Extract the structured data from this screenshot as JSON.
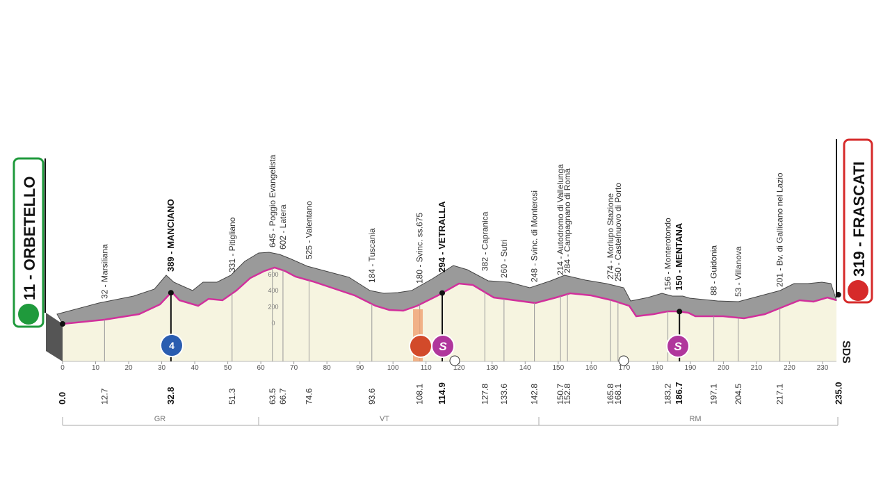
{
  "start": {
    "label": "11 - ORBETELLO",
    "km": "0.0"
  },
  "finish": {
    "label": "319 - FRASCATI",
    "km": "235.0"
  },
  "waypoints": [
    {
      "label": "32 - Marsiliana",
      "km": "12.7"
    },
    {
      "label": "389 - MANCIANO",
      "km": "32.8",
      "bold": true
    },
    {
      "label": "331 - Pitigliano",
      "km": "51.3"
    },
    {
      "label": "645 - Poggio Evangelista",
      "km": "63.5"
    },
    {
      "label": "602 - Latera",
      "km": "66.7"
    },
    {
      "label": "525 - Valentano",
      "km": "74.6"
    },
    {
      "label": "184 - Tuscania",
      "km": "93.6"
    },
    {
      "label": "180 - Svinc. ss.675",
      "km": "108.1"
    },
    {
      "label": "294 - VETRALLA",
      "km": "114.9",
      "bold": true
    },
    {
      "label": "382 - Capranica",
      "km": "127.8"
    },
    {
      "label": "260 - Sutri",
      "km": "133.6"
    },
    {
      "label": "248 - Svinc. di Monterosi",
      "km": "142.8"
    },
    {
      "label": "214 - Autodromo di Vallelunga",
      "km": "150.7"
    },
    {
      "label": "284 - Campagnano di Roma",
      "km": "152.8"
    },
    {
      "label": "274 - Morlupo Stazione",
      "km": "165.8"
    },
    {
      "label": "250 - Castelnuovo di Porto",
      "km": "168.1"
    },
    {
      "label": "156 - Monterotondo",
      "km": "183.2"
    },
    {
      "label": "150 - MENTANA",
      "km": "186.7",
      "bold": true
    },
    {
      "label": "88 - Guidonia",
      "km": "197.1"
    },
    {
      "label": "53 - Villanova",
      "km": "204.5"
    },
    {
      "label": "201 - Bv. di Gallicano nel Lazio",
      "km": "217.1"
    }
  ],
  "km_ticks": [
    0,
    10,
    20,
    30,
    40,
    50,
    60,
    70,
    80,
    90,
    100,
    110,
    120,
    130,
    140,
    150,
    160,
    170,
    180,
    190,
    200,
    210,
    220,
    230
  ],
  "altitude_ticks": [
    0,
    200,
    400,
    600
  ],
  "regions": [
    "GR",
    "VT",
    "RM"
  ],
  "icons": {
    "climb": "4",
    "sprint": "S"
  },
  "brand": "SDS"
}
